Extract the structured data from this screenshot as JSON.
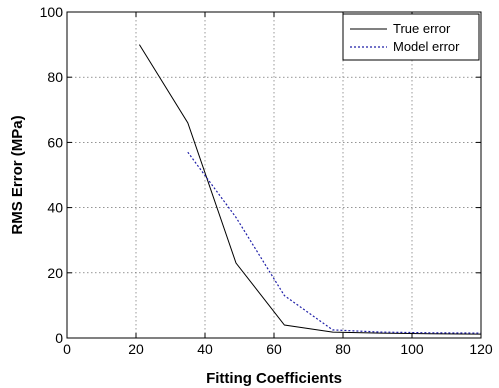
{
  "chart_data": {
    "type": "line",
    "title": "",
    "xlabel": "Fitting Coefficients",
    "ylabel": "RMS Error (MPa)",
    "xlim": [
      0,
      120
    ],
    "ylim": [
      0,
      100
    ],
    "xticks": [
      0,
      20,
      40,
      60,
      80,
      100,
      120
    ],
    "yticks": [
      0,
      20,
      40,
      60,
      80,
      100
    ],
    "grid": true,
    "legend_position": "top-right",
    "series": [
      {
        "name": "True error",
        "color": "#000000",
        "style": "solid",
        "x": [
          21,
          35,
          49,
          63,
          77,
          91,
          105,
          120
        ],
        "y": [
          90,
          66,
          23,
          4,
          1.8,
          1.5,
          1.3,
          1.2
        ]
      },
      {
        "name": "Model error",
        "color": "#1f1fa8",
        "style": "dotted",
        "x": [
          35,
          49,
          63,
          77,
          91,
          105,
          120
        ],
        "y": [
          57,
          37,
          13,
          2.5,
          1.8,
          1.6,
          1.5
        ]
      }
    ]
  }
}
